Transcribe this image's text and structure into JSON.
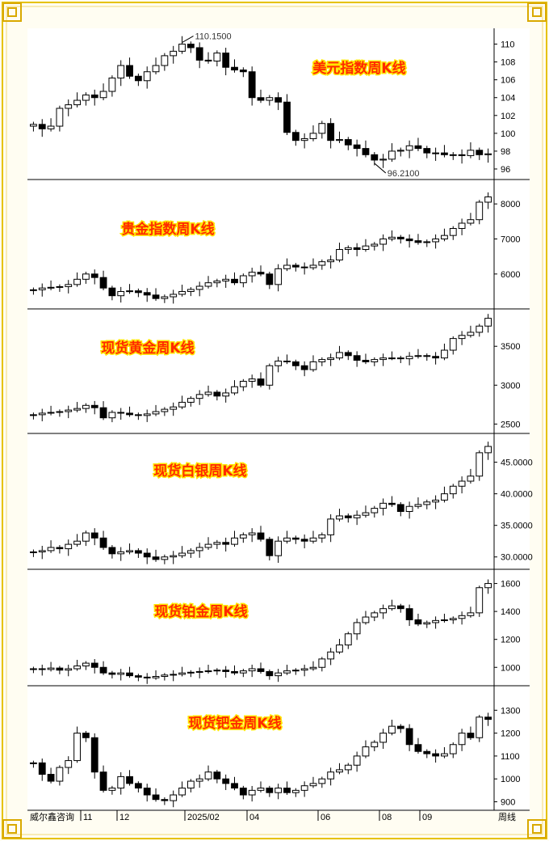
{
  "colors": {
    "up": "#ffffff",
    "down": "#000000",
    "title": "#ff2a00",
    "title_outline": "#ffe600",
    "frame": "#e6c200"
  },
  "footer": {
    "source": "威尔鑫咨询",
    "period_label": "周线"
  },
  "x_axis_labels": [
    "11",
    "12",
    "2025/02",
    "04",
    "06",
    "08",
    "09"
  ],
  "chart_data": [
    {
      "type": "candlestick",
      "title": "美元指数周K线",
      "ylim": [
        95,
        111.5
      ],
      "yticks": [
        96,
        98,
        100,
        102,
        104,
        106,
        108,
        110
      ],
      "tick_decimals": 0,
      "annotations": [
        {
          "text": "110.1500",
          "at": "high"
        },
        {
          "text": "96.2100",
          "at": "low"
        }
      ],
      "close": [
        101.0,
        100.5,
        100.8,
        102.8,
        103.2,
        103.7,
        104.3,
        104.0,
        104.7,
        106.2,
        107.6,
        106.4,
        105.9,
        106.9,
        107.6,
        108.7,
        109.2,
        110.0,
        109.6,
        108.2,
        108.1,
        109.0,
        107.4,
        107.1,
        106.9,
        104.0,
        103.7,
        104.0,
        103.5,
        100.1,
        99.2,
        99.4,
        100.0,
        101.1,
        99.2,
        99.3,
        98.7,
        98.3,
        97.6,
        97.0,
        97.1,
        98.0,
        98.1,
        98.6,
        98.3,
        97.8,
        97.8,
        97.6,
        97.6,
        97.5,
        98.1,
        97.6,
        97.7
      ]
    },
    {
      "type": "candlestick",
      "title": "贵金指数周K线",
      "ylim": [
        5050,
        8650
      ],
      "yticks": [
        6000,
        7000,
        8000
      ],
      "tick_decimals": 0,
      "close": [
        5550,
        5600,
        5620,
        5640,
        5700,
        5850,
        6000,
        5900,
        5600,
        5380,
        5500,
        5520,
        5470,
        5400,
        5300,
        5350,
        5420,
        5500,
        5560,
        5650,
        5750,
        5800,
        5850,
        5750,
        5950,
        6050,
        6000,
        5700,
        6150,
        6250,
        6200,
        6180,
        6250,
        6350,
        6400,
        6700,
        6750,
        6700,
        6800,
        6850,
        7000,
        7050,
        7000,
        6950,
        6900,
        6920,
        7000,
        7100,
        7300,
        7450,
        7550,
        8050,
        8200
      ]
    },
    {
      "type": "candlestick",
      "title": "现货黄金周K线",
      "ylim": [
        2400,
        3960
      ],
      "yticks": [
        2500,
        3000,
        3500
      ],
      "tick_decimals": 0,
      "close": [
        2620,
        2640,
        2650,
        2660,
        2680,
        2700,
        2740,
        2710,
        2580,
        2650,
        2640,
        2620,
        2610,
        2630,
        2660,
        2690,
        2720,
        2780,
        2830,
        2880,
        2910,
        2860,
        2900,
        2980,
        3050,
        3080,
        3000,
        3250,
        3310,
        3300,
        3250,
        3200,
        3300,
        3330,
        3350,
        3420,
        3380,
        3320,
        3300,
        3330,
        3350,
        3350,
        3340,
        3370,
        3380,
        3370,
        3350,
        3450,
        3600,
        3640,
        3680,
        3760,
        3860
      ]
    },
    {
      "type": "candlestick",
      "title": "现货白银周K线",
      "ylim": [
        28.3,
        49.3
      ],
      "yticks": [
        30,
        35,
        40,
        45
      ],
      "tick_decimals": 4,
      "close": [
        30.8,
        31.0,
        31.5,
        31.3,
        32.0,
        32.5,
        33.8,
        33.0,
        31.5,
        30.5,
        30.8,
        31.0,
        30.6,
        30.0,
        29.6,
        30.0,
        30.2,
        30.6,
        31.0,
        31.5,
        32.0,
        32.3,
        32.0,
        33.0,
        33.5,
        33.8,
        32.8,
        30.2,
        32.5,
        33.0,
        32.8,
        32.5,
        33.0,
        33.5,
        36.0,
        36.5,
        36.2,
        36.6,
        37.0,
        37.7,
        38.5,
        38.3,
        37.2,
        38.0,
        38.3,
        38.7,
        39.0,
        40.0,
        41.2,
        42.0,
        42.8,
        46.5,
        47.5
      ]
    },
    {
      "type": "candlestick",
      "title": "现货铂金周K线",
      "ylim": [
        880,
        1690
      ],
      "yticks": [
        1000,
        1200,
        1400,
        1600
      ],
      "tick_decimals": 0,
      "close": [
        990,
        985,
        995,
        980,
        990,
        1010,
        1030,
        1000,
        960,
        950,
        960,
        940,
        930,
        925,
        935,
        945,
        950,
        960,
        965,
        970,
        975,
        980,
        970,
        960,
        975,
        990,
        970,
        940,
        960,
        975,
        980,
        990,
        1000,
        1060,
        1110,
        1160,
        1240,
        1320,
        1360,
        1390,
        1420,
        1440,
        1420,
        1340,
        1310,
        1320,
        1335,
        1340,
        1350,
        1370,
        1390,
        1570,
        1600
      ]
    },
    {
      "type": "candlestick",
      "title": "现货钯金周K线",
      "ylim": [
        870,
        1400
      ],
      "yticks": [
        900,
        1000,
        1100,
        1200,
        1300
      ],
      "tick_decimals": 0,
      "close": [
        1070,
        1020,
        990,
        1050,
        1080,
        1200,
        1180,
        1030,
        950,
        960,
        1010,
        980,
        960,
        930,
        910,
        905,
        930,
        960,
        990,
        1000,
        1030,
        1000,
        980,
        960,
        930,
        950,
        960,
        940,
        960,
        940,
        950,
        970,
        980,
        1000,
        1030,
        1040,
        1060,
        1100,
        1140,
        1160,
        1200,
        1230,
        1220,
        1150,
        1120,
        1110,
        1100,
        1110,
        1150,
        1200,
        1180,
        1270,
        1260
      ]
    }
  ]
}
